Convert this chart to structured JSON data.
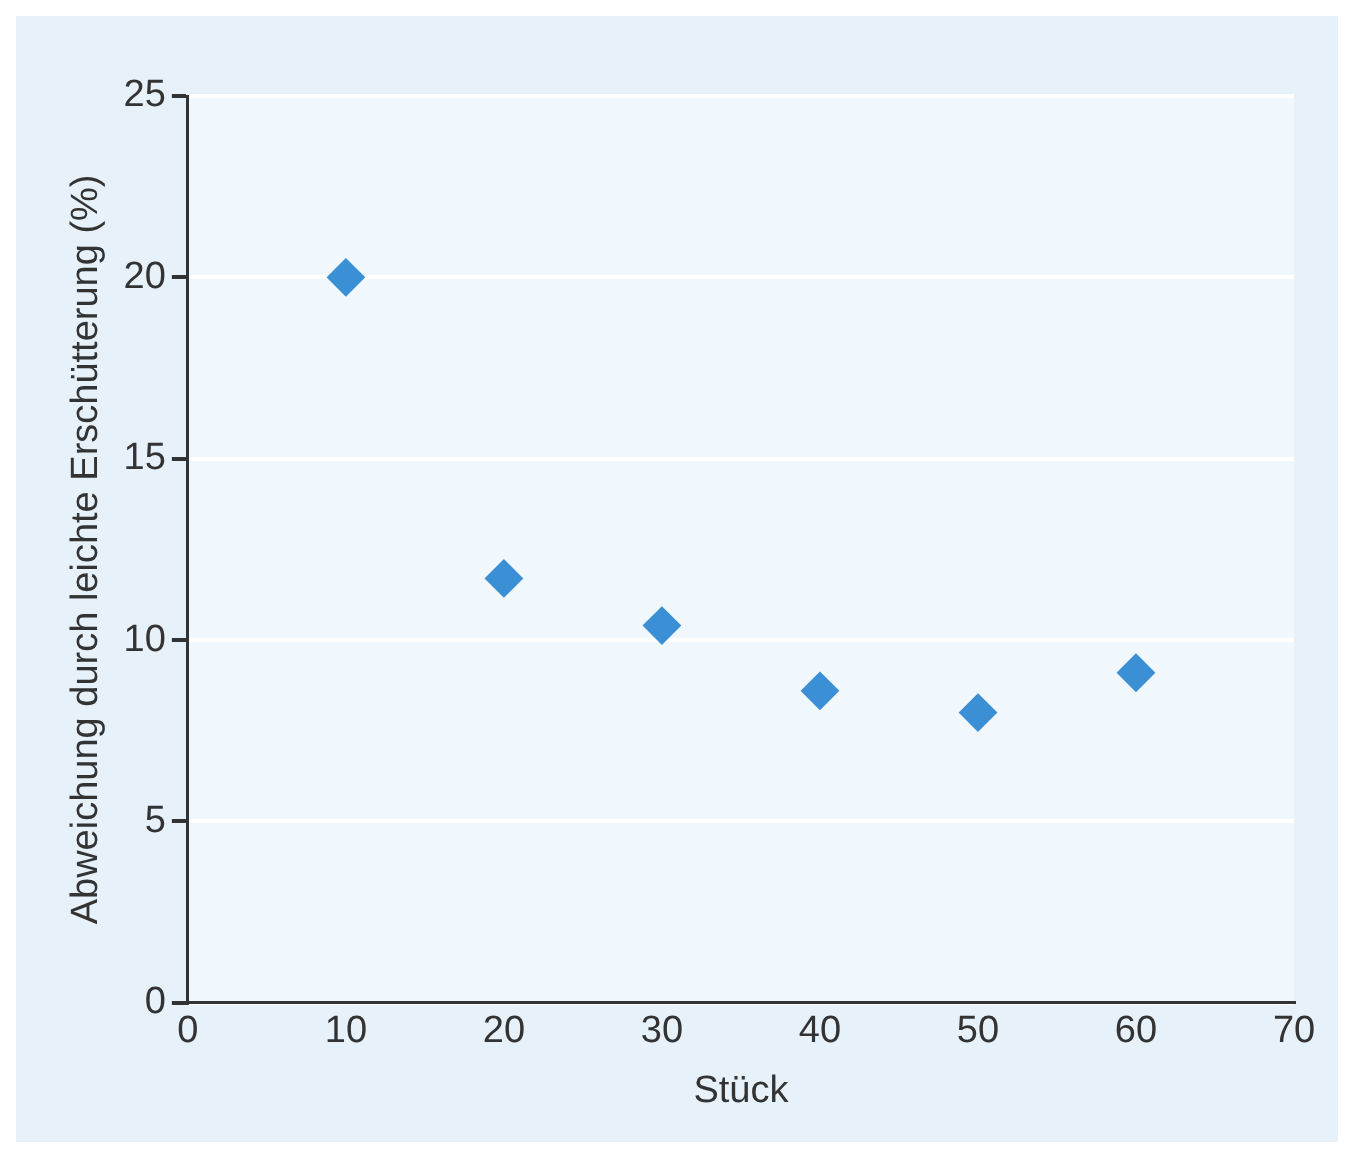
{
  "chart_data": {
    "type": "scatter",
    "xlabel": "Stück",
    "ylabel": "Abweichung durch leichte Erschütterung (%)",
    "x": [
      10,
      20,
      30,
      40,
      50,
      60
    ],
    "series": [
      {
        "color": "#3b8fd4",
        "values": [
          20,
          11.7,
          10.4,
          8.6,
          8.0,
          9.1
        ]
      }
    ],
    "xlim": [
      0,
      70
    ],
    "xticks": [
      0,
      10,
      20,
      30,
      40,
      50,
      60,
      70
    ],
    "ylim": [
      0,
      25
    ],
    "yticks": [
      0,
      5,
      10,
      15,
      20,
      25
    ],
    "grid": "y",
    "legend": false,
    "marker": "diamond"
  }
}
